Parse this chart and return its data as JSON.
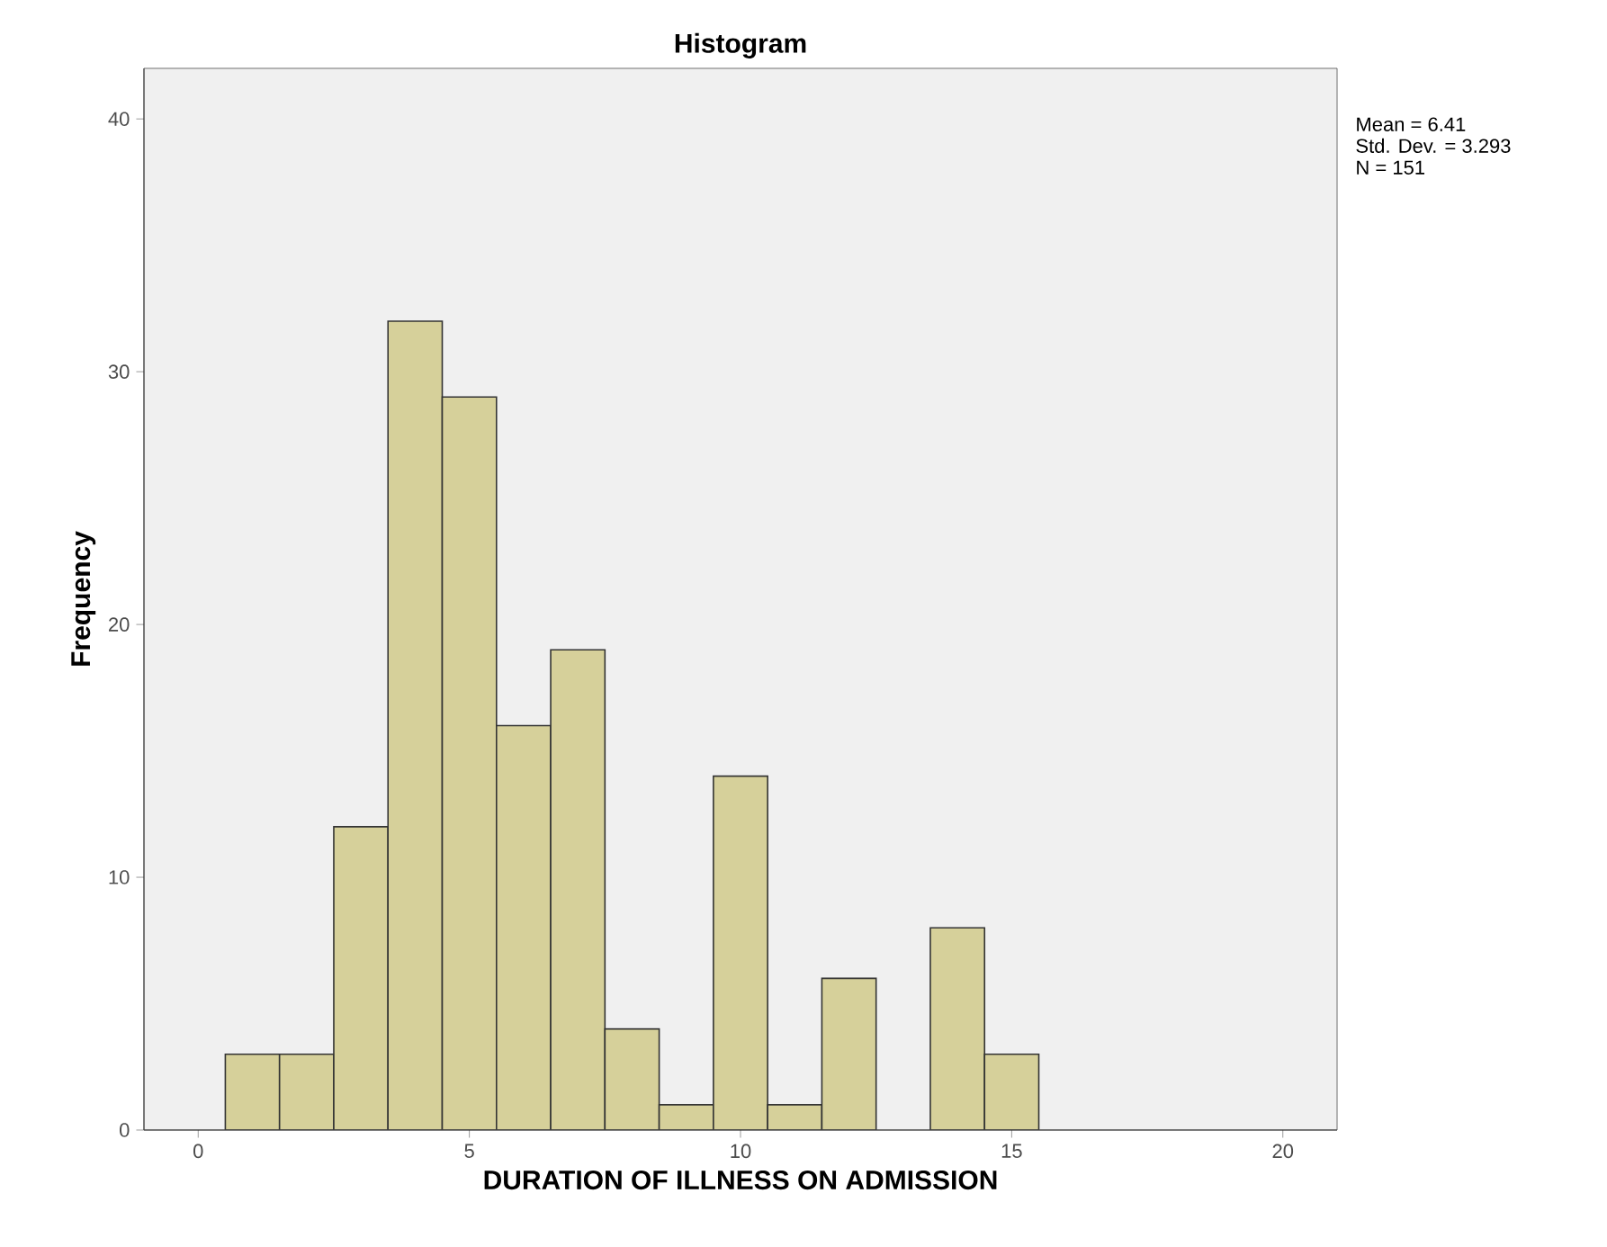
{
  "chart_data": {
    "type": "histogram",
    "title": "Histogram",
    "xlabel": "DURATION OF ILLNESS ON ADMISSION",
    "ylabel": "Frequency",
    "bins": [
      0.5,
      1.5,
      2.5,
      3.5,
      4.5,
      5.5,
      6.5,
      7.5,
      8.5,
      9.5,
      10.5,
      11.5,
      12.5,
      13.5,
      14.5,
      15.5
    ],
    "values": [
      3,
      3,
      12,
      32,
      29,
      16,
      19,
      4,
      1,
      14,
      1,
      6,
      0,
      8,
      3
    ],
    "color": "#d6d09a",
    "xlim": [
      -1,
      21
    ],
    "ylim": [
      0,
      42
    ],
    "xticks": [
      0,
      5,
      10,
      15,
      20
    ],
    "yticks": [
      0,
      10,
      20,
      30,
      40
    ],
    "grid": false,
    "annotations": [
      "Mean = 6.41",
      "Std. Dev. = 3.293",
      "N = 151"
    ]
  }
}
